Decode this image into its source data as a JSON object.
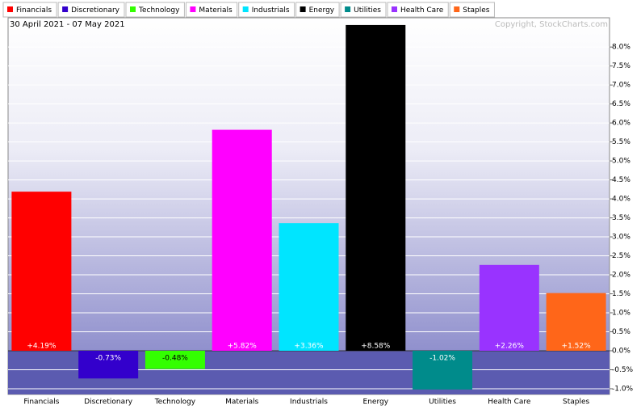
{
  "chart_data": {
    "type": "bar",
    "subtitle": "30 April 2021 - 07 May 2021",
    "credit": "Copyright, StockCharts.com",
    "categories": [
      "Financials",
      "Discretionary",
      "Technology",
      "Materials",
      "Industrials",
      "Energy",
      "Utilities",
      "Health Care",
      "Staples"
    ],
    "values": [
      4.19,
      -0.73,
      -0.48,
      5.82,
      3.36,
      8.58,
      -1.02,
      2.26,
      1.52
    ],
    "value_labels": [
      "+4.19%",
      "-0.73%",
      "-0.48%",
      "+5.82%",
      "+3.36%",
      "+8.58%",
      "-1.02%",
      "+2.26%",
      "+1.52%"
    ],
    "colors": [
      "#ff0000",
      "#3300cc",
      "#33ff00",
      "#ff00ff",
      "#00e5ff",
      "#000000",
      "#008b8b",
      "#9933ff",
      "#ff6619"
    ],
    "ylim": [
      -1.15,
      8.77
    ],
    "yticks": [
      {
        "value": -1.0,
        "label": "-1.0%"
      },
      {
        "value": -0.5,
        "label": "-0.5%"
      },
      {
        "value": 0,
        "label": "0.0%"
      },
      {
        "value": 0.5,
        "label": "0.5%"
      },
      {
        "value": 1.0,
        "label": "1.0%"
      },
      {
        "value": 1.5,
        "label": "1.5%"
      },
      {
        "value": 2.0,
        "label": "2.0%"
      },
      {
        "value": 2.5,
        "label": "2.5%"
      },
      {
        "value": 3.0,
        "label": "3.0%"
      },
      {
        "value": 3.5,
        "label": "3.5%"
      },
      {
        "value": 4.0,
        "label": "4.0%"
      },
      {
        "value": 4.5,
        "label": "4.5%"
      },
      {
        "value": 5.0,
        "label": "5.0%"
      },
      {
        "value": 5.5,
        "label": "5.5%"
      },
      {
        "value": 6.0,
        "label": "6.0%"
      },
      {
        "value": 6.5,
        "label": "6.5%"
      },
      {
        "value": 7.0,
        "label": "7.0%"
      },
      {
        "value": 7.5,
        "label": "7.5%"
      },
      {
        "value": 8.0,
        "label": "8.0%"
      }
    ],
    "grid": true
  }
}
